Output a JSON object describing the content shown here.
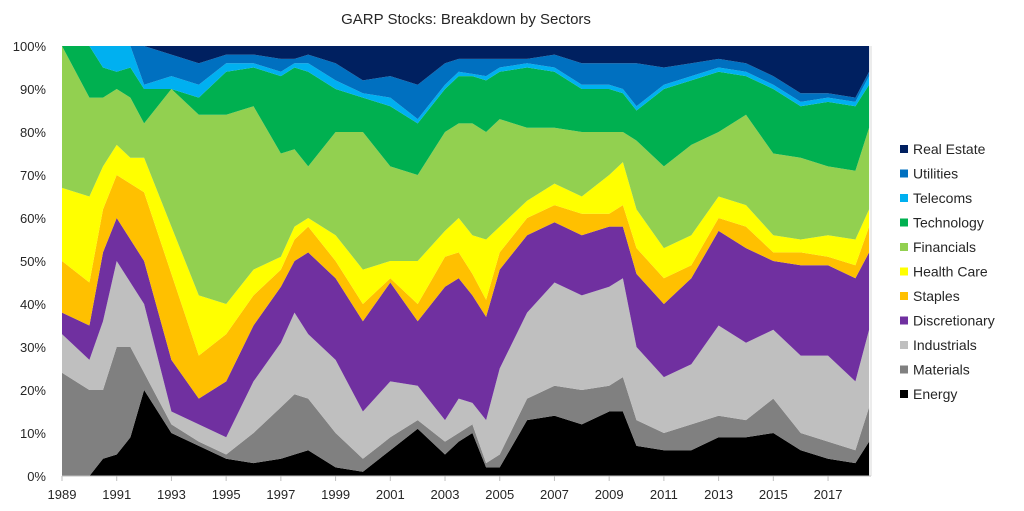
{
  "chart_data": {
    "type": "area",
    "stacked": true,
    "title": "GARP Stocks: Breakdown by Sectors",
    "xlabel": "",
    "ylabel": "",
    "xlim": [
      1989,
      2018.57
    ],
    "ylim": [
      0,
      100
    ],
    "y_ticks": [
      "0%",
      "10%",
      "20%",
      "30%",
      "40%",
      "50%",
      "60%",
      "70%",
      "80%",
      "90%",
      "100%"
    ],
    "x_ticks": [
      "1989",
      "1991",
      "1993",
      "1995",
      "1997",
      "1999",
      "2001",
      "2003",
      "2005",
      "2007",
      "2009",
      "2011",
      "2013",
      "2015",
      "2017"
    ],
    "grid": false,
    "legend_position": "right",
    "x": [
      1989,
      1990,
      1990.5,
      1991,
      1991.5,
      1992,
      1993,
      1994,
      1995,
      1996,
      1997,
      1997.5,
      1998,
      1999,
      2000,
      2001,
      2002,
      2003,
      2003.5,
      2004,
      2004.5,
      2005,
      2006,
      2007,
      2008,
      2009,
      2009.5,
      2010,
      2011,
      2012,
      2013,
      2014,
      2015,
      2016,
      2017,
      2018,
      2018.5
    ],
    "series": [
      {
        "name": "Energy",
        "color": "#000000",
        "values": [
          0,
          0,
          4,
          5,
          9,
          20,
          10,
          7,
          4,
          3,
          4,
          5,
          6,
          2,
          1,
          6,
          11,
          5,
          8,
          10,
          2,
          2,
          13,
          14,
          12,
          15,
          15,
          7,
          6,
          6,
          9,
          9,
          10,
          6,
          4,
          3,
          8
        ]
      },
      {
        "name": "Materials",
        "color": "#808080",
        "values": [
          24,
          20,
          16,
          25,
          21,
          4,
          2,
          1,
          1,
          7,
          12,
          14,
          12,
          8,
          3,
          3,
          2,
          3,
          2,
          2,
          1,
          3,
          5,
          7,
          8,
          6,
          8,
          6,
          4,
          6,
          5,
          4,
          8,
          4,
          4,
          3,
          8
        ]
      },
      {
        "name": "Industrials",
        "color": "#BFBFBF",
        "values": [
          9,
          7,
          16,
          20,
          15,
          16,
          3,
          4,
          4,
          12,
          15,
          19,
          15,
          17,
          11,
          13,
          8,
          5,
          8,
          5,
          10,
          20,
          20,
          24,
          22,
          23,
          23,
          17,
          13,
          14,
          21,
          18,
          16,
          18,
          20,
          16,
          18
        ]
      },
      {
        "name": "Discretionary",
        "color": "#7030A0",
        "values": [
          5,
          8,
          16,
          10,
          10,
          10,
          12,
          6,
          13,
          13,
          13,
          12,
          19,
          19,
          21,
          23,
          15,
          31,
          28,
          25,
          24,
          23,
          18,
          14,
          14,
          14,
          12,
          17,
          17,
          20,
          22,
          22,
          16,
          21,
          21,
          24,
          18
        ]
      },
      {
        "name": "Staples",
        "color": "#FFC000",
        "values": [
          12,
          10,
          10,
          10,
          13,
          16,
          20,
          10,
          11,
          7,
          4,
          5,
          6,
          4,
          4,
          1,
          4,
          7,
          6,
          5,
          4,
          4,
          4,
          4,
          5,
          3,
          5,
          6,
          6,
          3,
          3,
          5,
          2,
          3,
          2,
          3,
          6
        ]
      },
      {
        "name": "Health Care",
        "color": "#FFFF00",
        "values": [
          17,
          20,
          10,
          7,
          6,
          8,
          11,
          14,
          7,
          6,
          3,
          3,
          2,
          6,
          8,
          4,
          10,
          6,
          8,
          9,
          14,
          6,
          4,
          5,
          4,
          9,
          10,
          9,
          7,
          7,
          5,
          5,
          4,
          3,
          5,
          6,
          4
        ]
      },
      {
        "name": "Financials",
        "color": "#92D050",
        "values": [
          33,
          23,
          16,
          13,
          14,
          8,
          32,
          42,
          44,
          38,
          24,
          18,
          12,
          24,
          32,
          22,
          20,
          23,
          22,
          26,
          25,
          25,
          17,
          13,
          15,
          10,
          7,
          16,
          19,
          21,
          15,
          21,
          19,
          19,
          16,
          16,
          19
        ]
      },
      {
        "name": "Technology",
        "color": "#00B050",
        "values": [
          0,
          12,
          7,
          4,
          7,
          8,
          0,
          4,
          10,
          9,
          18,
          19,
          22,
          10,
          8,
          14,
          12,
          10,
          11,
          11,
          12,
          11,
          14,
          13,
          10,
          10,
          9,
          7,
          18,
          15,
          14,
          9,
          15,
          12,
          15,
          15,
          10
        ]
      },
      {
        "name": "Telecoms",
        "color": "#00B0F0",
        "values": [
          0,
          0,
          5,
          6,
          5,
          1,
          3,
          3,
          2,
          1,
          1,
          1,
          2,
          2,
          1,
          2,
          1,
          1,
          1,
          0.5,
          1,
          1,
          1,
          1,
          1,
          1,
          1,
          1,
          1,
          1,
          1,
          1,
          1,
          1,
          1,
          1,
          2
        ]
      },
      {
        "name": "Utilities",
        "color": "#0070C0",
        "values": [
          0,
          0,
          0,
          0,
          0,
          9,
          5,
          5,
          2,
          2,
          3,
          1,
          2,
          4,
          3,
          5,
          8,
          5,
          3,
          3.5,
          4,
          2,
          1,
          3,
          5,
          5,
          6,
          10,
          4,
          3,
          2,
          2,
          2,
          2,
          1,
          1,
          1
        ]
      },
      {
        "name": "Real Estate",
        "color": "#002060",
        "values": [
          0,
          0,
          0,
          0,
          0,
          0,
          2,
          4,
          2,
          2,
          3,
          3,
          2,
          4,
          8,
          7,
          9,
          4,
          3,
          3,
          3,
          3,
          3,
          2,
          4,
          4,
          4,
          4,
          5,
          4,
          3,
          4,
          7,
          11,
          11,
          12,
          6
        ]
      }
    ]
  }
}
